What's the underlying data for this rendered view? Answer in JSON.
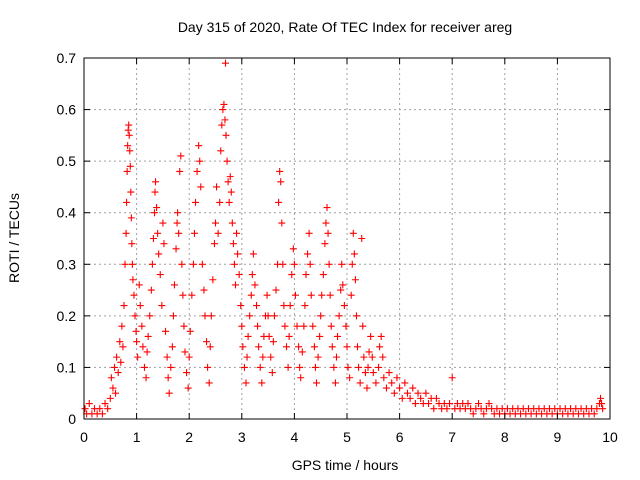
{
  "chart_data": {
    "type": "scatter",
    "title": "Day 315 of 2020, Rate Of TEC Index for receiver areg",
    "xlabel": "GPS time / hours",
    "ylabel": "ROTI / TECUs",
    "xlim": [
      0,
      10
    ],
    "ylim": [
      0,
      0.7
    ],
    "xticks": [
      "0",
      "1",
      "2",
      "3",
      "4",
      "5",
      "6",
      "7",
      "8",
      "9",
      "10"
    ],
    "yticks": [
      "0",
      "0.1",
      "0.2",
      "0.3",
      "0.4",
      "0.5",
      "0.6",
      "0.7"
    ],
    "grid": true,
    "marker": "+",
    "color": "#ff0000",
    "points": [
      [
        0.02,
        0.02
      ],
      [
        0.05,
        0.01
      ],
      [
        0.1,
        0.03
      ],
      [
        0.15,
        0.01
      ],
      [
        0.2,
        0.02
      ],
      [
        0.25,
        0.01
      ],
      [
        0.3,
        0.02
      ],
      [
        0.35,
        0.01
      ],
      [
        0.4,
        0.03
      ],
      [
        0.45,
        0.02
      ],
      [
        0.5,
        0.04
      ],
      [
        0.52,
        0.08
      ],
      [
        0.55,
        0.06
      ],
      [
        0.58,
        0.1
      ],
      [
        0.6,
        0.05
      ],
      [
        0.62,
        0.12
      ],
      [
        0.65,
        0.09
      ],
      [
        0.68,
        0.15
      ],
      [
        0.7,
        0.11
      ],
      [
        0.72,
        0.18
      ],
      [
        0.74,
        0.14
      ],
      [
        0.76,
        0.22
      ],
      [
        0.78,
        0.3
      ],
      [
        0.8,
        0.36
      ],
      [
        0.81,
        0.42
      ],
      [
        0.82,
        0.48
      ],
      [
        0.83,
        0.53
      ],
      [
        0.84,
        0.56
      ],
      [
        0.85,
        0.57
      ],
      [
        0.86,
        0.55
      ],
      [
        0.87,
        0.52
      ],
      [
        0.88,
        0.49
      ],
      [
        0.89,
        0.44
      ],
      [
        0.9,
        0.39
      ],
      [
        0.91,
        0.34
      ],
      [
        0.92,
        0.3
      ],
      [
        0.93,
        0.27
      ],
      [
        0.95,
        0.24
      ],
      [
        0.97,
        0.2
      ],
      [
        0.99,
        0.17
      ],
      [
        1.0,
        0.15
      ],
      [
        1.02,
        0.12
      ],
      [
        1.05,
        0.26
      ],
      [
        1.07,
        0.22
      ],
      [
        1.1,
        0.18
      ],
      [
        1.12,
        0.14
      ],
      [
        1.15,
        0.1
      ],
      [
        1.18,
        0.08
      ],
      [
        1.2,
        0.13
      ],
      [
        1.22,
        0.16
      ],
      [
        1.25,
        0.2
      ],
      [
        1.28,
        0.25
      ],
      [
        1.3,
        0.3
      ],
      [
        1.32,
        0.35
      ],
      [
        1.34,
        0.4
      ],
      [
        1.35,
        0.44
      ],
      [
        1.36,
        0.46
      ],
      [
        1.38,
        0.41
      ],
      [
        1.4,
        0.36
      ],
      [
        1.42,
        0.32
      ],
      [
        1.45,
        0.28
      ],
      [
        1.48,
        0.22
      ],
      [
        1.5,
        0.38
      ],
      [
        1.52,
        0.34
      ],
      [
        1.55,
        0.17
      ],
      [
        1.58,
        0.12
      ],
      [
        1.6,
        0.08
      ],
      [
        1.62,
        0.05
      ],
      [
        1.65,
        0.1
      ],
      [
        1.68,
        0.14
      ],
      [
        1.7,
        0.2
      ],
      [
        1.72,
        0.26
      ],
      [
        1.75,
        0.33
      ],
      [
        1.77,
        0.38
      ],
      [
        1.78,
        0.4
      ],
      [
        1.8,
        0.36
      ],
      [
        1.82,
        0.48
      ],
      [
        1.84,
        0.51
      ],
      [
        1.86,
        0.3
      ],
      [
        1.88,
        0.24
      ],
      [
        1.9,
        0.18
      ],
      [
        1.92,
        0.13
      ],
      [
        1.95,
        0.09
      ],
      [
        1.98,
        0.06
      ],
      [
        2.0,
        0.12
      ],
      [
        2.02,
        0.17
      ],
      [
        2.05,
        0.24
      ],
      [
        2.08,
        0.3
      ],
      [
        2.1,
        0.36
      ],
      [
        2.12,
        0.42
      ],
      [
        2.15,
        0.48
      ],
      [
        2.18,
        0.53
      ],
      [
        2.2,
        0.5
      ],
      [
        2.22,
        0.45
      ],
      [
        2.25,
        0.3
      ],
      [
        2.28,
        0.25
      ],
      [
        2.3,
        0.2
      ],
      [
        2.33,
        0.15
      ],
      [
        2.35,
        0.1
      ],
      [
        2.38,
        0.07
      ],
      [
        2.4,
        0.14
      ],
      [
        2.42,
        0.2
      ],
      [
        2.45,
        0.27
      ],
      [
        2.48,
        0.34
      ],
      [
        2.5,
        0.38
      ],
      [
        2.52,
        0.45
      ],
      [
        2.55,
        0.36
      ],
      [
        2.58,
        0.42
      ],
      [
        2.6,
        0.52
      ],
      [
        2.62,
        0.57
      ],
      [
        2.64,
        0.6
      ],
      [
        2.66,
        0.61
      ],
      [
        2.68,
        0.58
      ],
      [
        2.69,
        0.69
      ],
      [
        2.7,
        0.55
      ],
      [
        2.72,
        0.5
      ],
      [
        2.74,
        0.46
      ],
      [
        2.76,
        0.42
      ],
      [
        2.78,
        0.47
      ],
      [
        2.8,
        0.44
      ],
      [
        2.82,
        0.38
      ],
      [
        2.84,
        0.34
      ],
      [
        2.86,
        0.3
      ],
      [
        2.88,
        0.26
      ],
      [
        2.9,
        0.36
      ],
      [
        2.92,
        0.32
      ],
      [
        2.95,
        0.28
      ],
      [
        2.98,
        0.22
      ],
      [
        3.0,
        0.18
      ],
      [
        3.02,
        0.14
      ],
      [
        3.05,
        0.1
      ],
      [
        3.08,
        0.07
      ],
      [
        3.1,
        0.12
      ],
      [
        3.12,
        0.16
      ],
      [
        3.15,
        0.2
      ],
      [
        3.18,
        0.24
      ],
      [
        3.2,
        0.28
      ],
      [
        3.22,
        0.32
      ],
      [
        3.25,
        0.26
      ],
      [
        3.28,
        0.22
      ],
      [
        3.3,
        0.18
      ],
      [
        3.32,
        0.14
      ],
      [
        3.35,
        0.1
      ],
      [
        3.38,
        0.07
      ],
      [
        3.4,
        0.12
      ],
      [
        3.42,
        0.16
      ],
      [
        3.45,
        0.2
      ],
      [
        3.48,
        0.24
      ],
      [
        3.5,
        0.2
      ],
      [
        3.52,
        0.16
      ],
      [
        3.55,
        0.12
      ],
      [
        3.58,
        0.09
      ],
      [
        3.6,
        0.15
      ],
      [
        3.62,
        0.2
      ],
      [
        3.65,
        0.25
      ],
      [
        3.68,
        0.3
      ],
      [
        3.7,
        0.42
      ],
      [
        3.72,
        0.48
      ],
      [
        3.74,
        0.46
      ],
      [
        3.76,
        0.38
      ],
      [
        3.78,
        0.3
      ],
      [
        3.8,
        0.22
      ],
      [
        3.82,
        0.18
      ],
      [
        3.85,
        0.14
      ],
      [
        3.88,
        0.1
      ],
      [
        3.9,
        0.16
      ],
      [
        3.92,
        0.22
      ],
      [
        3.95,
        0.28
      ],
      [
        3.98,
        0.33
      ],
      [
        4.0,
        0.3
      ],
      [
        4.02,
        0.24
      ],
      [
        4.05,
        0.18
      ],
      [
        4.08,
        0.14
      ],
      [
        4.1,
        0.1
      ],
      [
        4.12,
        0.08
      ],
      [
        4.15,
        0.13
      ],
      [
        4.18,
        0.18
      ],
      [
        4.2,
        0.22
      ],
      [
        4.22,
        0.28
      ],
      [
        4.25,
        0.32
      ],
      [
        4.28,
        0.36
      ],
      [
        4.3,
        0.3
      ],
      [
        4.32,
        0.24
      ],
      [
        4.35,
        0.18
      ],
      [
        4.38,
        0.14
      ],
      [
        4.4,
        0.1
      ],
      [
        4.42,
        0.07
      ],
      [
        4.45,
        0.12
      ],
      [
        4.48,
        0.16
      ],
      [
        4.5,
        0.2
      ],
      [
        4.52,
        0.24
      ],
      [
        4.55,
        0.28
      ],
      [
        4.58,
        0.34
      ],
      [
        4.6,
        0.38
      ],
      [
        4.62,
        0.41
      ],
      [
        4.64,
        0.36
      ],
      [
        4.66,
        0.3
      ],
      [
        4.68,
        0.24
      ],
      [
        4.7,
        0.18
      ],
      [
        4.72,
        0.14
      ],
      [
        4.75,
        0.1
      ],
      [
        4.78,
        0.07
      ],
      [
        4.8,
        0.12
      ],
      [
        4.82,
        0.16
      ],
      [
        4.85,
        0.2
      ],
      [
        4.88,
        0.25
      ],
      [
        4.9,
        0.3
      ],
      [
        4.92,
        0.26
      ],
      [
        4.95,
        0.22
      ],
      [
        4.98,
        0.18
      ],
      [
        5.0,
        0.14
      ],
      [
        5.02,
        0.1
      ],
      [
        5.05,
        0.08
      ],
      [
        5.08,
        0.24
      ],
      [
        5.1,
        0.3
      ],
      [
        5.12,
        0.36
      ],
      [
        5.14,
        0.32
      ],
      [
        5.16,
        0.27
      ],
      [
        5.18,
        0.2
      ],
      [
        5.2,
        0.14
      ],
      [
        5.22,
        0.1
      ],
      [
        5.25,
        0.07
      ],
      [
        5.28,
        0.35
      ],
      [
        5.3,
        0.18
      ],
      [
        5.32,
        0.12
      ],
      [
        5.35,
        0.09
      ],
      [
        5.38,
        0.06
      ],
      [
        5.4,
        0.1
      ],
      [
        5.42,
        0.13
      ],
      [
        5.45,
        0.16
      ],
      [
        5.48,
        0.12
      ],
      [
        5.5,
        0.09
      ],
      [
        5.55,
        0.07
      ],
      [
        5.6,
        0.1
      ],
      [
        5.62,
        0.14
      ],
      [
        5.65,
        0.16
      ],
      [
        5.68,
        0.12
      ],
      [
        5.7,
        0.08
      ],
      [
        5.75,
        0.06
      ],
      [
        5.8,
        0.09
      ],
      [
        5.85,
        0.07
      ],
      [
        5.9,
        0.05
      ],
      [
        5.95,
        0.08
      ],
      [
        6.0,
        0.06
      ],
      [
        6.05,
        0.04
      ],
      [
        6.1,
        0.07
      ],
      [
        6.15,
        0.05
      ],
      [
        6.2,
        0.04
      ],
      [
        6.25,
        0.06
      ],
      [
        6.3,
        0.03
      ],
      [
        6.35,
        0.05
      ],
      [
        6.4,
        0.04
      ],
      [
        6.45,
        0.03
      ],
      [
        6.5,
        0.05
      ],
      [
        6.55,
        0.03
      ],
      [
        6.6,
        0.04
      ],
      [
        6.65,
        0.02
      ],
      [
        6.7,
        0.04
      ],
      [
        6.75,
        0.03
      ],
      [
        6.8,
        0.02
      ],
      [
        6.85,
        0.03
      ],
      [
        6.9,
        0.02
      ],
      [
        6.95,
        0.03
      ],
      [
        7.0,
        0.08
      ],
      [
        7.05,
        0.02
      ],
      [
        7.1,
        0.03
      ],
      [
        7.15,
        0.02
      ],
      [
        7.2,
        0.03
      ],
      [
        7.25,
        0.02
      ],
      [
        7.3,
        0.03
      ],
      [
        7.35,
        0.02
      ],
      [
        7.4,
        0.01
      ],
      [
        7.45,
        0.02
      ],
      [
        7.5,
        0.03
      ],
      [
        7.55,
        0.02
      ],
      [
        7.6,
        0.01
      ],
      [
        7.65,
        0.02
      ],
      [
        7.7,
        0.03
      ],
      [
        7.75,
        0.02
      ],
      [
        7.8,
        0.01
      ],
      [
        7.85,
        0.02
      ],
      [
        7.9,
        0.01
      ],
      [
        7.95,
        0.02
      ],
      [
        8.0,
        0.01
      ],
      [
        8.05,
        0.02
      ],
      [
        8.1,
        0.01
      ],
      [
        8.15,
        0.02
      ],
      [
        8.2,
        0.01
      ],
      [
        8.25,
        0.02
      ],
      [
        8.3,
        0.01
      ],
      [
        8.35,
        0.02
      ],
      [
        8.4,
        0.01
      ],
      [
        8.45,
        0.02
      ],
      [
        8.5,
        0.01
      ],
      [
        8.55,
        0.02
      ],
      [
        8.6,
        0.01
      ],
      [
        8.65,
        0.02
      ],
      [
        8.7,
        0.01
      ],
      [
        8.75,
        0.02
      ],
      [
        8.8,
        0.01
      ],
      [
        8.85,
        0.02
      ],
      [
        8.9,
        0.01
      ],
      [
        8.95,
        0.02
      ],
      [
        9.0,
        0.01
      ],
      [
        9.05,
        0.02
      ],
      [
        9.1,
        0.01
      ],
      [
        9.15,
        0.02
      ],
      [
        9.2,
        0.01
      ],
      [
        9.25,
        0.02
      ],
      [
        9.3,
        0.01
      ],
      [
        9.35,
        0.02
      ],
      [
        9.4,
        0.01
      ],
      [
        9.45,
        0.02
      ],
      [
        9.5,
        0.01
      ],
      [
        9.55,
        0.02
      ],
      [
        9.6,
        0.01
      ],
      [
        9.65,
        0.02
      ],
      [
        9.7,
        0.01
      ],
      [
        9.75,
        0.02
      ],
      [
        9.8,
        0.03
      ],
      [
        9.82,
        0.04
      ],
      [
        9.84,
        0.03
      ],
      [
        9.86,
        0.02
      ]
    ]
  }
}
